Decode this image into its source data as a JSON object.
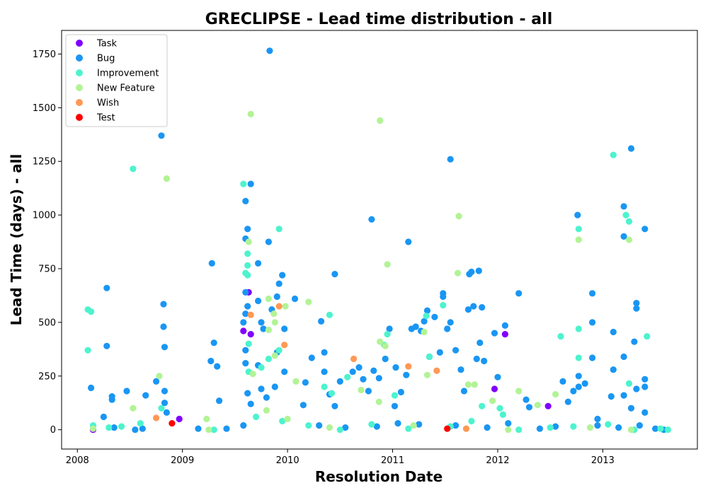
{
  "chart_data": {
    "type": "scatter",
    "title": "GRECLIPSE - Lead time distribution - all",
    "xlabel": "Resolution Date",
    "ylabel": "Lead Time (days) - all",
    "xlim": [
      2007.85,
      2013.9
    ],
    "ylim": [
      -90,
      1860
    ],
    "x_ticks": [
      2008,
      2009,
      2010,
      2011,
      2012,
      2013
    ],
    "y_ticks": [
      0,
      250,
      500,
      750,
      1000,
      1250,
      1500,
      1750
    ],
    "grid": false,
    "legend_position": "top-left",
    "series": [
      {
        "name": "Task",
        "color": "#8000ff",
        "points": [
          [
            2008.15,
            0
          ],
          [
            2008.97,
            50
          ],
          [
            2009.58,
            460
          ],
          [
            2009.63,
            640
          ],
          [
            2009.65,
            445
          ],
          [
            2011.97,
            190
          ],
          [
            2012.07,
            445
          ],
          [
            2012.48,
            110
          ]
        ]
      },
      {
        "name": "Bug",
        "color": "#1996f3",
        "points": [
          [
            2008.8,
            1370
          ],
          [
            2009.83,
            1765
          ],
          [
            2009.65,
            1145
          ],
          [
            2009.6,
            1065
          ],
          [
            2009.62,
            935
          ],
          [
            2011.55,
            1260
          ],
          [
            2013.27,
            1310
          ],
          [
            2013.2,
            1040
          ],
          [
            2012.76,
            1000
          ],
          [
            2013.2,
            900
          ],
          [
            2013.4,
            935
          ],
          [
            2010.8,
            980
          ],
          [
            2011.15,
            875
          ],
          [
            2009.82,
            875
          ],
          [
            2009.6,
            890
          ],
          [
            2009.28,
            775
          ],
          [
            2009.72,
            775
          ],
          [
            2009.95,
            720
          ],
          [
            2010.45,
            725
          ],
          [
            2011.75,
            735
          ],
          [
            2011.82,
            740
          ],
          [
            2011.73,
            725
          ],
          [
            2008.28,
            660
          ],
          [
            2008.82,
            585
          ],
          [
            2008.82,
            480
          ],
          [
            2008.83,
            385
          ],
          [
            2008.28,
            390
          ],
          [
            2008.13,
            195
          ],
          [
            2008.33,
            155
          ],
          [
            2008.33,
            140
          ],
          [
            2008.47,
            180
          ],
          [
            2008.65,
            160
          ],
          [
            2008.75,
            225
          ],
          [
            2008.83,
            180
          ],
          [
            2008.83,
            125
          ],
          [
            2008.85,
            80
          ],
          [
            2009.27,
            320
          ],
          [
            2009.3,
            405
          ],
          [
            2009.33,
            295
          ],
          [
            2009.35,
            135
          ],
          [
            2009.6,
            640
          ],
          [
            2009.62,
            575
          ],
          [
            2009.6,
            540
          ],
          [
            2009.58,
            500
          ],
          [
            2009.6,
            370
          ],
          [
            2009.6,
            310
          ],
          [
            2009.62,
            170
          ],
          [
            2009.65,
            120
          ],
          [
            2009.72,
            600
          ],
          [
            2009.75,
            500
          ],
          [
            2009.77,
            470
          ],
          [
            2009.72,
            300
          ],
          [
            2009.75,
            190
          ],
          [
            2009.8,
            150
          ],
          [
            2009.85,
            560
          ],
          [
            2009.9,
            620
          ],
          [
            2009.92,
            680
          ],
          [
            2009.97,
            470
          ],
          [
            2009.97,
            270
          ],
          [
            2010.07,
            610
          ],
          [
            2010.17,
            220
          ],
          [
            2010.23,
            335
          ],
          [
            2010.32,
            505
          ],
          [
            2010.35,
            360
          ],
          [
            2010.35,
            270
          ],
          [
            2010.4,
            165
          ],
          [
            2010.45,
            110
          ],
          [
            2010.62,
            270
          ],
          [
            2010.68,
            290
          ],
          [
            2010.72,
            235
          ],
          [
            2010.77,
            180
          ],
          [
            2010.82,
            275
          ],
          [
            2010.87,
            240
          ],
          [
            2010.93,
            330
          ],
          [
            2010.97,
            470
          ],
          [
            2011.03,
            290
          ],
          [
            2011.08,
            175
          ],
          [
            2011.13,
            255
          ],
          [
            2011.18,
            470
          ],
          [
            2011.22,
            480
          ],
          [
            2011.27,
            460
          ],
          [
            2011.3,
            505
          ],
          [
            2011.33,
            555
          ],
          [
            2011.35,
            340
          ],
          [
            2011.4,
            525
          ],
          [
            2011.45,
            360
          ],
          [
            2011.48,
            635
          ],
          [
            2011.48,
            620
          ],
          [
            2011.52,
            470
          ],
          [
            2011.55,
            500
          ],
          [
            2011.6,
            370
          ],
          [
            2011.65,
            280
          ],
          [
            2011.68,
            180
          ],
          [
            2011.72,
            560
          ],
          [
            2011.77,
            575
          ],
          [
            2011.8,
            330
          ],
          [
            2011.83,
            405
          ],
          [
            2011.85,
            570
          ],
          [
            2011.87,
            320
          ],
          [
            2011.97,
            450
          ],
          [
            2012.07,
            485
          ],
          [
            2012.2,
            635
          ],
          [
            2012.3,
            105
          ],
          [
            2012.67,
            130
          ],
          [
            2012.72,
            180
          ],
          [
            2012.77,
            250
          ],
          [
            2012.77,
            200
          ],
          [
            2012.83,
            215
          ],
          [
            2012.9,
            635
          ],
          [
            2012.9,
            500
          ],
          [
            2012.9,
            335
          ],
          [
            2013.08,
            155
          ],
          [
            2013.1,
            455
          ],
          [
            2013.1,
            280
          ],
          [
            2013.2,
            340
          ],
          [
            2013.2,
            160
          ],
          [
            2013.27,
            100
          ],
          [
            2013.3,
            410
          ],
          [
            2013.32,
            590
          ],
          [
            2013.32,
            565
          ],
          [
            2013.32,
            190
          ],
          [
            2013.4,
            235
          ],
          [
            2013.4,
            200
          ],
          [
            2013.4,
            80
          ],
          [
            2008.35,
            10
          ],
          [
            2008.55,
            0
          ],
          [
            2008.62,
            5
          ],
          [
            2009.15,
            5
          ],
          [
            2009.42,
            5
          ],
          [
            2009.58,
            20
          ],
          [
            2010.3,
            20
          ],
          [
            2010.55,
            10
          ],
          [
            2010.85,
            15
          ],
          [
            2011.05,
            30
          ],
          [
            2011.25,
            25
          ],
          [
            2011.6,
            20
          ],
          [
            2011.9,
            10
          ],
          [
            2012.1,
            30
          ],
          [
            2012.4,
            5
          ],
          [
            2012.55,
            15
          ],
          [
            2012.95,
            20
          ],
          [
            2013.15,
            10
          ],
          [
            2013.35,
            20
          ],
          [
            2013.5,
            5
          ],
          [
            2013.58,
            0
          ],
          [
            2009.9,
            360
          ],
          [
            2009.88,
            200
          ],
          [
            2010.5,
            225
          ],
          [
            2011.02,
            110
          ],
          [
            2012.0,
            245
          ],
          [
            2012.27,
            140
          ],
          [
            2012.62,
            225
          ],
          [
            2012.95,
            50
          ],
          [
            2008.25,
            60
          ],
          [
            2010.15,
            115
          ]
        ]
      },
      {
        "name": "Improvement",
        "color": "#4df3ce",
        "points": [
          [
            2008.1,
            560
          ],
          [
            2008.13,
            550
          ],
          [
            2008.1,
            370
          ],
          [
            2008.53,
            1215
          ],
          [
            2009.58,
            1145
          ],
          [
            2009.62,
            820
          ],
          [
            2009.62,
            765
          ],
          [
            2009.6,
            730
          ],
          [
            2009.62,
            720
          ],
          [
            2009.92,
            935
          ],
          [
            2009.63,
            400
          ],
          [
            2009.63,
            270
          ],
          [
            2010.4,
            535
          ],
          [
            2011.48,
            580
          ],
          [
            2012.6,
            435
          ],
          [
            2012.77,
            935
          ],
          [
            2012.77,
            470
          ],
          [
            2012.77,
            335
          ],
          [
            2013.1,
            1280
          ],
          [
            2013.22,
            1000
          ],
          [
            2013.25,
            970
          ],
          [
            2013.25,
            215
          ],
          [
            2013.42,
            435
          ],
          [
            2011.32,
            530
          ],
          [
            2011.35,
            340
          ],
          [
            2010.95,
            445
          ],
          [
            2010.92,
            395
          ],
          [
            2011.02,
            160
          ],
          [
            2010.57,
            245
          ],
          [
            2010.35,
            200
          ],
          [
            2010.42,
            170
          ],
          [
            2009.92,
            370
          ],
          [
            2009.82,
            330
          ],
          [
            2009.75,
            290
          ],
          [
            2008.8,
            100
          ],
          [
            2008.6,
            30
          ],
          [
            2008.15,
            20
          ],
          [
            2008.3,
            10
          ],
          [
            2008.42,
            15
          ],
          [
            2009.3,
            0
          ],
          [
            2009.7,
            60
          ],
          [
            2009.95,
            40
          ],
          [
            2010.2,
            20
          ],
          [
            2010.5,
            0
          ],
          [
            2010.8,
            25
          ],
          [
            2011.15,
            5
          ],
          [
            2011.55,
            15
          ],
          [
            2011.75,
            40
          ],
          [
            2012.05,
            70
          ],
          [
            2012.2,
            0
          ],
          [
            2012.5,
            10
          ],
          [
            2012.72,
            15
          ],
          [
            2013.05,
            25
          ],
          [
            2013.3,
            0
          ],
          [
            2013.55,
            5
          ],
          [
            2013.62,
            0
          ],
          [
            2011.85,
            110
          ],
          [
            2012.02,
            100
          ]
        ]
      },
      {
        "name": "New Feature",
        "color": "#b2f396",
        "points": [
          [
            2009.65,
            1470
          ],
          [
            2010.88,
            1440
          ],
          [
            2008.85,
            1170
          ],
          [
            2011.63,
            995
          ],
          [
            2009.63,
            875
          ],
          [
            2012.77,
            885
          ],
          [
            2013.25,
            885
          ],
          [
            2010.95,
            770
          ],
          [
            2011.62,
            730
          ],
          [
            2009.82,
            610
          ],
          [
            2009.98,
            575
          ],
          [
            2010.2,
            595
          ],
          [
            2009.88,
            500
          ],
          [
            2009.87,
            540
          ],
          [
            2009.82,
            465
          ],
          [
            2011.3,
            455
          ],
          [
            2010.88,
            410
          ],
          [
            2010.93,
            390
          ],
          [
            2011.33,
            255
          ],
          [
            2011.78,
            210
          ],
          [
            2011.72,
            210
          ],
          [
            2012.2,
            180
          ],
          [
            2012.55,
            165
          ],
          [
            2008.78,
            250
          ],
          [
            2008.53,
            100
          ],
          [
            2009.23,
            50
          ],
          [
            2009.67,
            260
          ],
          [
            2009.88,
            345
          ],
          [
            2010.08,
            225
          ],
          [
            2010.7,
            185
          ],
          [
            2010.87,
            130
          ],
          [
            2012.38,
            115
          ],
          [
            2011.95,
            135
          ],
          [
            2009.8,
            90
          ],
          [
            2010.0,
            50
          ],
          [
            2010.4,
            10
          ],
          [
            2011.2,
            20
          ],
          [
            2011.7,
            5
          ],
          [
            2012.1,
            0
          ],
          [
            2012.88,
            10
          ],
          [
            2013.27,
            0
          ],
          [
            2009.25,
            0
          ],
          [
            2008.15,
            5
          ]
        ]
      },
      {
        "name": "Wish",
        "color": "#ff9955",
        "points": [
          [
            2009.65,
            535
          ],
          [
            2009.92,
            575
          ],
          [
            2009.97,
            395
          ],
          [
            2010.63,
            330
          ],
          [
            2011.15,
            295
          ],
          [
            2011.42,
            275
          ],
          [
            2008.75,
            55
          ],
          [
            2011.7,
            5
          ]
        ]
      },
      {
        "name": "Test",
        "color": "#ff0000",
        "points": [
          [
            2008.9,
            30
          ],
          [
            2011.52,
            5
          ]
        ]
      }
    ]
  }
}
